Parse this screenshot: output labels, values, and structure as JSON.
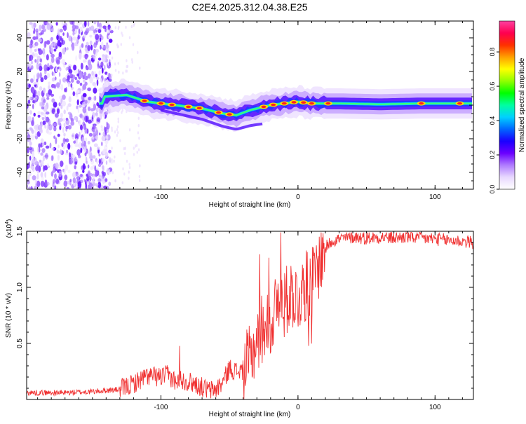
{
  "title": "C2E4.2025.312.04.38.E25",
  "chart_data": [
    {
      "type": "heatmap",
      "title": "C2E4.2025.312.04.38.E25",
      "xlabel": "Height of straight line (km)",
      "ylabel": "Frequency (Hz)",
      "xlim": [
        -198,
        128
      ],
      "ylim": [
        -50,
        50
      ],
      "xticks": [
        -100,
        0,
        100
      ],
      "xtick_labels": [
        "-100",
        "0",
        "100"
      ],
      "yticks": [
        40,
        20,
        0,
        -20,
        -40
      ],
      "ytick_labels": [
        "40",
        "20",
        "0",
        "-20",
        "-40"
      ],
      "ridge_x": [
        -142,
        -125,
        -110,
        -90,
        -70,
        -55,
        -45,
        -35,
        -20,
        -10,
        0,
        10,
        30,
        60,
        90,
        128
      ],
      "ridge_y": [
        5,
        6,
        2,
        0,
        -2,
        -5,
        -6,
        -3,
        0,
        1,
        2,
        1,
        1,
        0.5,
        1,
        1
      ],
      "colorbar": {
        "label": "Normalized spectral amplitude",
        "range": [
          0,
          0.98
        ],
        "ticks": [
          0.0,
          0.2,
          0.4,
          0.6,
          0.8
        ],
        "tick_labels": [
          "0.0",
          "0.2",
          "0.4",
          "0.6",
          "0.8"
        ],
        "colors": [
          "#ffffff",
          "#e8d8ff",
          "#b07cff",
          "#6a00ff",
          "#1a00ff",
          "#0066ff",
          "#00d0ff",
          "#00ffa0",
          "#00ff00",
          "#90ff00",
          "#ffff00",
          "#ffa000",
          "#ff3000",
          "#ff0050",
          "#ff40a0"
        ]
      }
    },
    {
      "type": "line",
      "xlabel": "Height of straight line (km)",
      "ylabel": "SNR (10 * v/v)",
      "scale_label": "(x10",
      "scale_exp": "4",
      "scale_close": ")",
      "xlim": [
        -198,
        128
      ],
      "ylim": [
        0,
        15000
      ],
      "xticks": [
        -100,
        0,
        100
      ],
      "xtick_labels": [
        "-100",
        "0",
        "100"
      ],
      "yticks": [
        5000,
        10000,
        15000
      ],
      "ytick_labels": [
        "0.5",
        "1.0",
        "1.5"
      ],
      "color": "#f03030",
      "x": [
        -198,
        -170,
        -150,
        -130,
        -120,
        -110,
        -100,
        -95,
        -90,
        -85,
        -80,
        -75,
        -70,
        -65,
        -60,
        -55,
        -50,
        -45,
        -40,
        -35,
        -30,
        -25,
        -20,
        -15,
        -10,
        -5,
        0,
        5,
        10,
        15,
        20,
        25,
        30,
        40,
        50,
        60,
        70,
        80,
        90,
        100,
        110,
        120,
        128
      ],
      "y": [
        600,
        600,
        700,
        900,
        1400,
        2100,
        2000,
        2200,
        1700,
        1800,
        1600,
        1400,
        1100,
        800,
        900,
        1500,
        2800,
        2500,
        2600,
        3500,
        5500,
        6500,
        7000,
        8500,
        8500,
        9500,
        9000,
        10000,
        10500,
        12000,
        13500,
        14200,
        14300,
        14500,
        14400,
        14500,
        14400,
        14500,
        14400,
        14300,
        14200,
        14100,
        14000
      ]
    }
  ]
}
